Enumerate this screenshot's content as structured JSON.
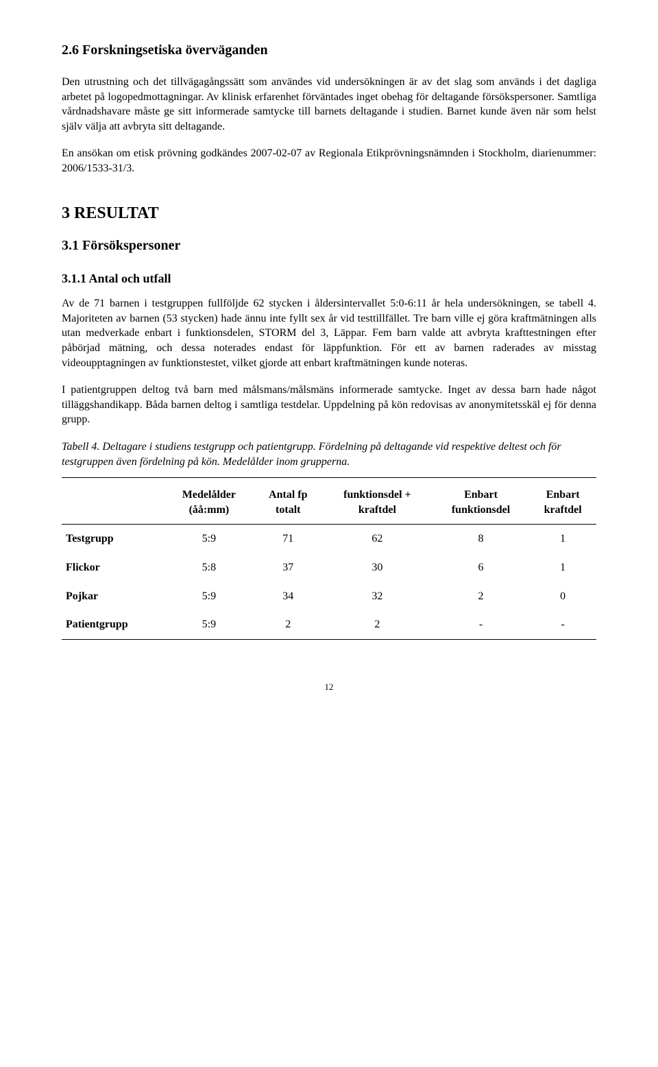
{
  "section26_title": "2.6 Forskningsetiska överväganden",
  "section26_p1": "Den utrustning och det tillvägagångssätt som användes vid undersökningen är av det slag som används i det dagliga arbetet på logopedmottagningar. Av klinisk erfarenhet förväntades inget obehag för deltagande försökspersoner. Samtliga vårdnadshavare måste ge sitt informerade samtycke till barnets deltagande i studien. Barnet kunde även när som helst själv välja att avbryta sitt deltagande.",
  "section26_p2": "En ansökan om etisk prövning godkändes 2007-02-07 av Regionala Etikprövningsnämnden i Stockholm, diarienummer: 2006/1533-31/3.",
  "section3_title": "3 RESULTAT",
  "section31_title": "3.1 Försökspersoner",
  "section311_title": "3.1.1 Antal och utfall",
  "section311_p1": "Av de 71 barnen i testgruppen fullföljde 62 stycken i åldersintervallet 5:0-6:11 år hela undersökningen, se tabell 4. Majoriteten av barnen (53 stycken) hade ännu inte fyllt sex år vid testtillfället. Tre barn ville ej göra kraftmätningen alls utan medverkade enbart i funktionsdelen, STORM del 3, Läppar. Fem barn valde att avbryta krafttestningen efter påbörjad mätning, och dessa noterades endast för läppfunktion. För ett av barnen raderades av misstag videoupptagningen av funktionstestet, vilket gjorde att enbart kraftmätningen kunde noteras.",
  "section311_p2": "I patientgruppen deltog två barn med målsmans/målsmäns informerade samtycke. Inget av dessa barn hade något tilläggshandikapp. Båda barnen deltog i samtliga testdelar. Uppdelning på kön redovisas av anonymitetsskäl ej för denna grupp.",
  "table4_caption": "Tabell 4. Deltagare i studiens testgrupp och patientgrupp. Fördelning på deltagande vid respektive deltest och för testgruppen även fördelning på kön. Medelålder inom grupperna.",
  "table4": {
    "columns": [
      {
        "line1": "Medelålder",
        "line2": "(åå:mm)"
      },
      {
        "line1": "Antal fp",
        "line2": "totalt"
      },
      {
        "line1": "funktionsdel +",
        "line2": "kraftdel"
      },
      {
        "line1": "Enbart",
        "line2": "funktionsdel"
      },
      {
        "line1": "Enbart",
        "line2": "kraftdel"
      }
    ],
    "rows": [
      {
        "label": "Testgrupp",
        "c1": "5:9",
        "c2": "71",
        "c3": "62",
        "c4": "8",
        "c5": "1"
      },
      {
        "label": "Flickor",
        "c1": "5:8",
        "c2": "37",
        "c3": "30",
        "c4": "6",
        "c5": "1"
      },
      {
        "label": "Pojkar",
        "c1": "5:9",
        "c2": "34",
        "c3": "32",
        "c4": "2",
        "c5": "0"
      },
      {
        "label": "Patientgrupp",
        "c1": "5:9",
        "c2": "2",
        "c3": "2",
        "c4": "-",
        "c5": "-"
      }
    ]
  },
  "page_number": "12"
}
